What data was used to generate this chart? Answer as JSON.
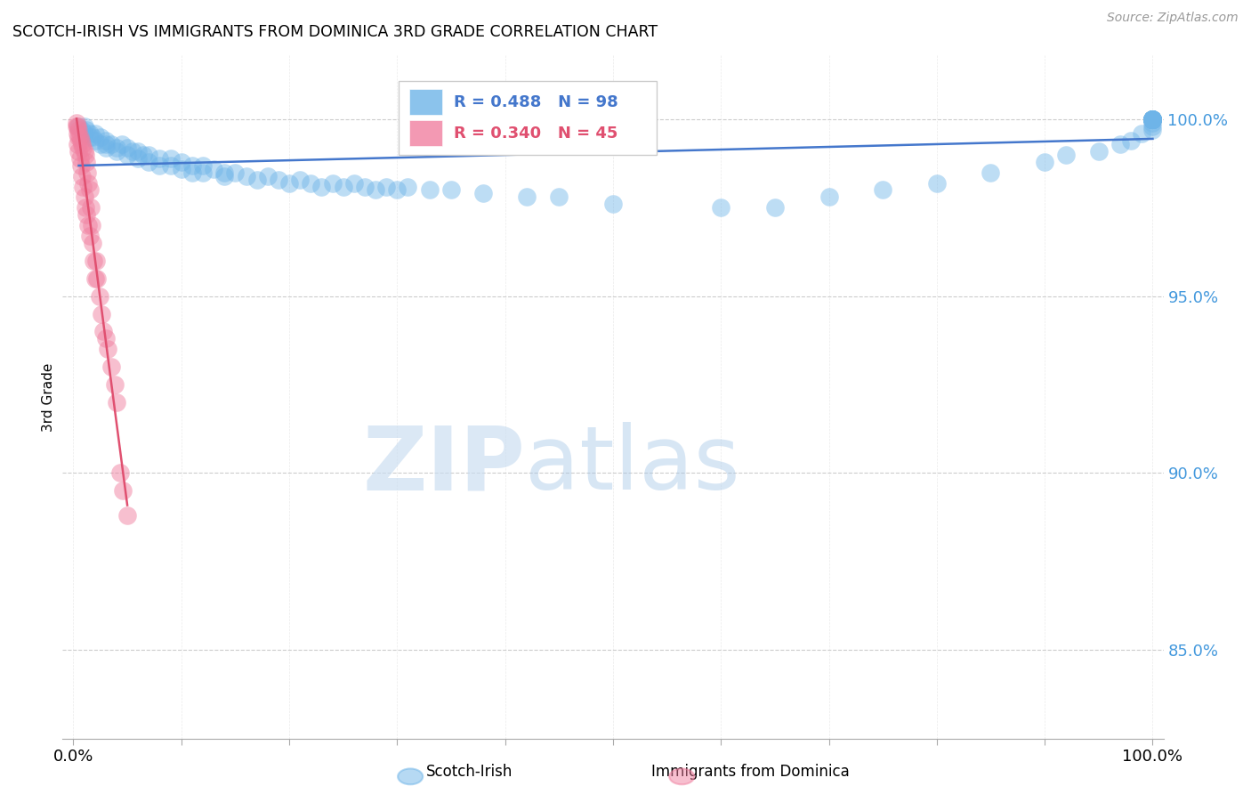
{
  "title": "SCOTCH-IRISH VS IMMIGRANTS FROM DOMINICA 3RD GRADE CORRELATION CHART",
  "source": "Source: ZipAtlas.com",
  "ylabel": "3rd Grade",
  "y_ticks": [
    0.85,
    0.9,
    0.95,
    1.0
  ],
  "y_tick_labels": [
    "85.0%",
    "90.0%",
    "95.0%",
    "100.0%"
  ],
  "x_ticks": [
    0.0,
    0.1,
    0.2,
    0.3,
    0.4,
    0.5,
    0.6,
    0.7,
    0.8,
    0.9,
    1.0
  ],
  "xlim": [
    -0.01,
    1.01
  ],
  "ylim": [
    0.825,
    1.018
  ],
  "blue_R": 0.488,
  "blue_N": 98,
  "pink_R": 0.34,
  "pink_N": 45,
  "blue_color": "#6EB4E8",
  "pink_color": "#F080A0",
  "blue_line_color": "#4477CC",
  "pink_line_color": "#E05070",
  "legend_label_blue": "Scotch-Irish",
  "legend_label_pink": "Immigrants from Dominica",
  "background_color": "#ffffff",
  "grid_color": "#cccccc",
  "axis_label_color": "#4499DD",
  "blue_scatter_x": [
    0.005,
    0.008,
    0.01,
    0.01,
    0.012,
    0.015,
    0.015,
    0.018,
    0.02,
    0.02,
    0.025,
    0.025,
    0.03,
    0.03,
    0.03,
    0.035,
    0.04,
    0.04,
    0.045,
    0.05,
    0.05,
    0.055,
    0.06,
    0.06,
    0.065,
    0.07,
    0.07,
    0.08,
    0.08,
    0.09,
    0.09,
    0.1,
    0.1,
    0.11,
    0.11,
    0.12,
    0.12,
    0.13,
    0.14,
    0.14,
    0.15,
    0.16,
    0.17,
    0.18,
    0.19,
    0.2,
    0.21,
    0.22,
    0.23,
    0.24,
    0.25,
    0.26,
    0.27,
    0.28,
    0.29,
    0.3,
    0.31,
    0.33,
    0.35,
    0.38,
    0.42,
    0.45,
    0.5,
    0.6,
    0.65,
    0.7,
    0.75,
    0.8,
    0.85,
    0.9,
    0.92,
    0.95,
    0.97,
    0.98,
    0.99,
    1.0,
    1.0,
    1.0,
    1.0,
    1.0,
    1.0,
    1.0,
    1.0,
    1.0,
    1.0,
    1.0,
    1.0,
    1.0,
    1.0,
    1.0,
    1.0,
    1.0,
    1.0,
    1.0,
    1.0,
    1.0,
    1.0,
    1.0
  ],
  "blue_scatter_y": [
    0.998,
    0.997,
    0.998,
    0.996,
    0.997,
    0.996,
    0.995,
    0.995,
    0.996,
    0.994,
    0.995,
    0.993,
    0.994,
    0.993,
    0.992,
    0.993,
    0.992,
    0.991,
    0.993,
    0.992,
    0.99,
    0.991,
    0.991,
    0.989,
    0.99,
    0.99,
    0.988,
    0.989,
    0.987,
    0.989,
    0.987,
    0.988,
    0.986,
    0.987,
    0.985,
    0.987,
    0.985,
    0.986,
    0.985,
    0.984,
    0.985,
    0.984,
    0.983,
    0.984,
    0.983,
    0.982,
    0.983,
    0.982,
    0.981,
    0.982,
    0.981,
    0.982,
    0.981,
    0.98,
    0.981,
    0.98,
    0.981,
    0.98,
    0.98,
    0.979,
    0.978,
    0.978,
    0.976,
    0.975,
    0.975,
    0.978,
    0.98,
    0.982,
    0.985,
    0.988,
    0.99,
    0.991,
    0.993,
    0.994,
    0.996,
    0.997,
    0.998,
    0.999,
    1.0,
    1.0,
    1.0,
    1.0,
    1.0,
    1.0,
    1.0,
    1.0,
    1.0,
    1.0,
    1.0,
    1.0,
    1.0,
    1.0,
    1.0,
    1.0,
    1.0,
    1.0,
    1.0,
    1.0
  ],
  "pink_scatter_x": [
    0.003,
    0.004,
    0.004,
    0.005,
    0.005,
    0.006,
    0.006,
    0.007,
    0.007,
    0.008,
    0.008,
    0.009,
    0.009,
    0.01,
    0.01,
    0.011,
    0.011,
    0.012,
    0.012,
    0.013,
    0.014,
    0.014,
    0.015,
    0.015,
    0.016,
    0.017,
    0.018,
    0.019,
    0.02,
    0.021,
    0.022,
    0.024,
    0.026,
    0.028,
    0.03,
    0.032,
    0.035,
    0.038,
    0.04,
    0.043,
    0.046,
    0.05,
    0.003,
    0.004,
    0.005
  ],
  "pink_scatter_y": [
    0.998,
    0.996,
    0.993,
    0.997,
    0.991,
    0.995,
    0.989,
    0.994,
    0.987,
    0.993,
    0.984,
    0.992,
    0.981,
    0.991,
    0.978,
    0.99,
    0.975,
    0.988,
    0.973,
    0.985,
    0.982,
    0.97,
    0.98,
    0.967,
    0.975,
    0.97,
    0.965,
    0.96,
    0.955,
    0.96,
    0.955,
    0.95,
    0.945,
    0.94,
    0.938,
    0.935,
    0.93,
    0.925,
    0.92,
    0.9,
    0.895,
    0.888,
    0.999,
    0.998,
    0.995
  ]
}
